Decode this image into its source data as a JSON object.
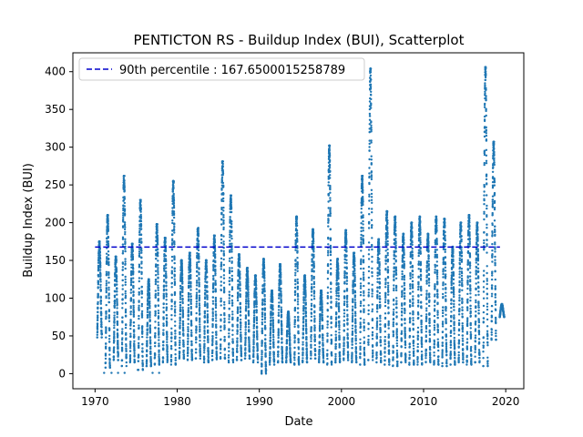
{
  "chart_data": {
    "type": "scatter",
    "title": "PENTICTON RS - Buildup Index (BUI), Scatterplot",
    "xlabel": "Date",
    "ylabel": "Buildup Index (BUI)",
    "xlim": [
      1967.3,
      2022.2
    ],
    "ylim": [
      -20,
      425
    ],
    "xticks": [
      1970,
      1980,
      1990,
      2000,
      2010,
      2020
    ],
    "yticks": [
      0,
      50,
      100,
      150,
      200,
      250,
      300,
      350,
      400
    ],
    "point_color": "#1f77b4",
    "legend": {
      "placement": "top-left"
    },
    "reference_line": {
      "label": "90th percentile : 167.6500015258789",
      "value": 167.6500015258789,
      "color": "#0000cc",
      "style": "dashed"
    },
    "series": [
      {
        "years": [
          1970,
          1971,
          1972,
          1973,
          1974,
          1975,
          1976,
          1977,
          1978,
          1979,
          1980,
          1981,
          1982,
          1983,
          1984,
          1985,
          1986,
          1987,
          1988,
          1989,
          1990,
          1991,
          1992,
          1993,
          1994,
          1995,
          1996,
          1997,
          1998,
          1999,
          2000,
          2001,
          2002,
          2003,
          2004,
          2005,
          2006,
          2007,
          2008,
          2009,
          2010,
          2011,
          2012,
          2013,
          2014,
          2015,
          2016,
          2017,
          2018,
          2019
        ],
        "season_min": [
          48,
          8,
          18,
          10,
          15,
          5,
          10,
          12,
          15,
          12,
          20,
          18,
          20,
          15,
          18,
          20,
          15,
          18,
          20,
          15,
          0,
          12,
          15,
          15,
          12,
          15,
          20,
          15,
          12,
          15,
          18,
          15,
          12,
          18,
          15,
          12,
          10,
          15,
          12,
          12,
          15,
          12,
          10,
          12,
          15,
          12,
          15,
          10,
          45,
          75
        ],
        "season_max": [
          175,
          210,
          155,
          262,
          172,
          230,
          125,
          198,
          180,
          255,
          150,
          160,
          193,
          150,
          183,
          281,
          236,
          158,
          140,
          130,
          152,
          110,
          145,
          82,
          208,
          130,
          191,
          110,
          302,
          152,
          190,
          160,
          262,
          404,
          178,
          215,
          208,
          185,
          200,
          208,
          185,
          208,
          205,
          168,
          200,
          210,
          200,
          406,
          307,
          92
        ]
      }
    ],
    "extra_points": [
      [
        1971.1,
        1
      ],
      [
        1972.0,
        1
      ],
      [
        1972.8,
        1
      ],
      [
        1973.6,
        1
      ],
      [
        1975.2,
        5
      ],
      [
        1977.0,
        1
      ],
      [
        1977.8,
        1
      ]
    ]
  }
}
